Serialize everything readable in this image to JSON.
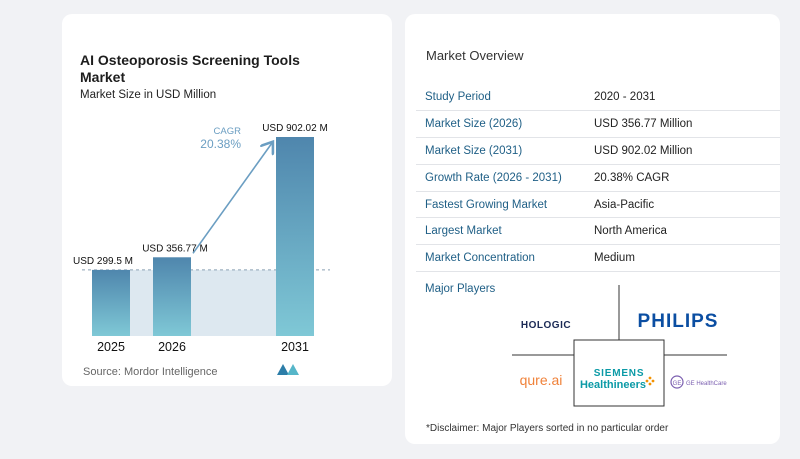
{
  "chart_data": {
    "type": "bar",
    "title": "AI Osteoporosis Screening Tools Market",
    "subtitle": "Market Size in USD Million",
    "categories": [
      "2025",
      "2026",
      "2031"
    ],
    "values": [
      299.5,
      356.77,
      902.02
    ],
    "value_labels": [
      "USD 299.5 M",
      "USD 356.77 M",
      "USD 902.02 M"
    ],
    "cagr_label": "CAGR",
    "cagr_value": "20.38%",
    "xlabel": "",
    "ylabel": "",
    "ylim": [
      0,
      1000
    ],
    "grid": false,
    "legend": "none",
    "colors": {
      "bar_top": "#4f86ad",
      "bar_bottom": "#7fc8d6",
      "shade": "#dde8f0",
      "arrow": "#6b9ec2"
    }
  },
  "source": "Source:  Mordor Intelligence",
  "overview": {
    "title": "Market Overview",
    "rows": [
      {
        "key": "Study Period",
        "value": "2020 - 2031"
      },
      {
        "key": "Market Size (2026)",
        "value": "USD 356.77 Million"
      },
      {
        "key": "Market Size (2031)",
        "value": "USD 902.02 Million"
      },
      {
        "key": "Growth Rate (2026 - 2031)",
        "value": "20.38% CAGR"
      },
      {
        "key": "Fastest Growing Market",
        "value": "Asia-Pacific"
      },
      {
        "key": "Largest Market",
        "value": "North America"
      },
      {
        "key": "Market Concentration",
        "value": "Medium"
      }
    ],
    "players_title": "Major Players",
    "players": {
      "hologic": "HOLOGIC",
      "philips": "PHILIPS",
      "qure": "qure.ai",
      "siemens_top": "SIEMENS",
      "siemens_bottom": "Healthineers",
      "ge": "GE HealthCare"
    },
    "disclaimer": "*Disclaimer: Major Players sorted in no particular order"
  }
}
